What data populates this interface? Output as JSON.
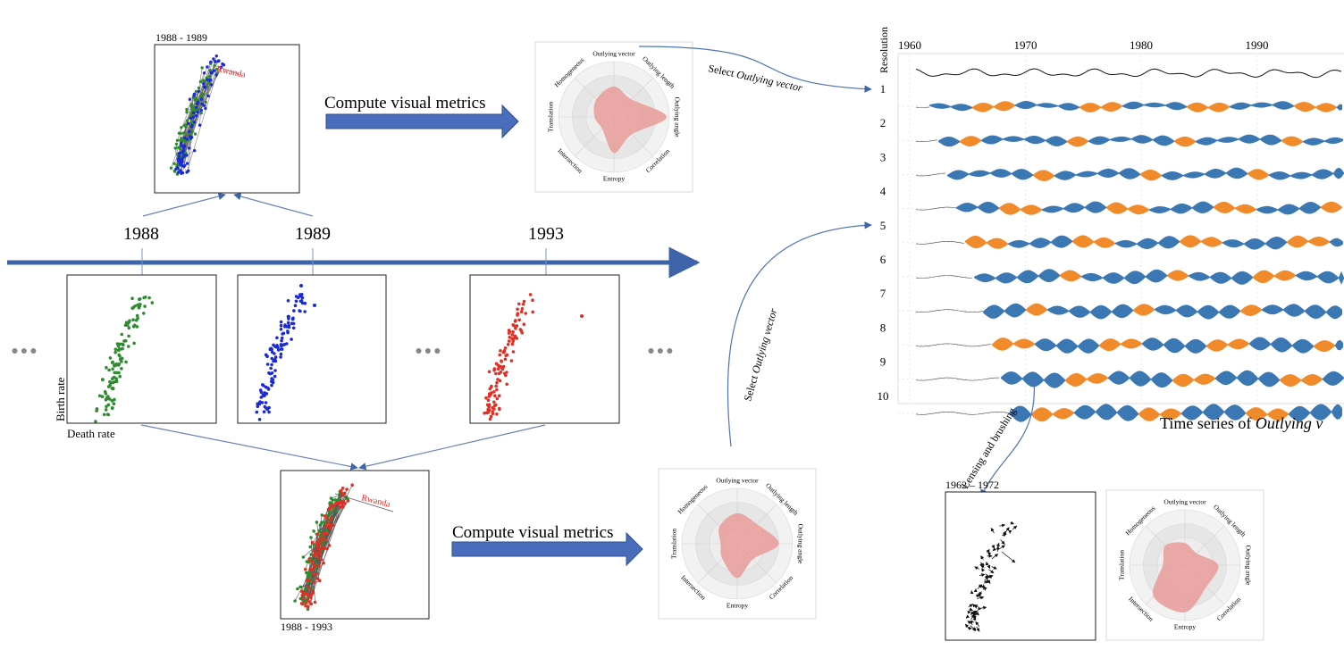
{
  "colors": {
    "arrow_blue": "#3d63a8",
    "connector": "#6b84b8",
    "green": "#2e8b2e",
    "blue": "#1a2ad6",
    "red": "#e03025",
    "radar_fill": "#e89a98",
    "stream_blue": "#3b78b3",
    "stream_orange": "#f08a2a",
    "label_red": "#ff1a1a"
  },
  "timeline": {
    "years": [
      "1988",
      "1989",
      "1993"
    ],
    "ellipsis": "●●●"
  },
  "scatter_axes": {
    "ylabel": "Birth rate",
    "xlabel": "Death rate"
  },
  "top_combined": {
    "title": "1988 - 1989",
    "label": "Rwanda"
  },
  "bottom_combined": {
    "title": "1988 - 1993",
    "label": "Rwanda"
  },
  "compute_label": "Compute visual metrics",
  "radar": {
    "axes": [
      "Outlying vector",
      "Outlying length",
      "Outlying angle",
      "Correlation",
      "Entropy",
      "Intersection",
      "Translation",
      "Homogeneous"
    ]
  },
  "select_label": {
    "prefix": "Select ",
    "emph": "Outlying vector"
  },
  "lensing_label": "Lensing and brushing",
  "lensing_window": {
    "title": "1962 – 1972"
  },
  "timeseries": {
    "ylabel": "Resolution",
    "x_ticks": [
      "1960",
      "1970",
      "1980",
      "1990"
    ],
    "resolutions": [
      "1",
      "2",
      "3",
      "4",
      "5",
      "6",
      "7",
      "8",
      "9",
      "10"
    ],
    "caption_prefix": "Time series of ",
    "caption_emph": "Outlying v"
  }
}
